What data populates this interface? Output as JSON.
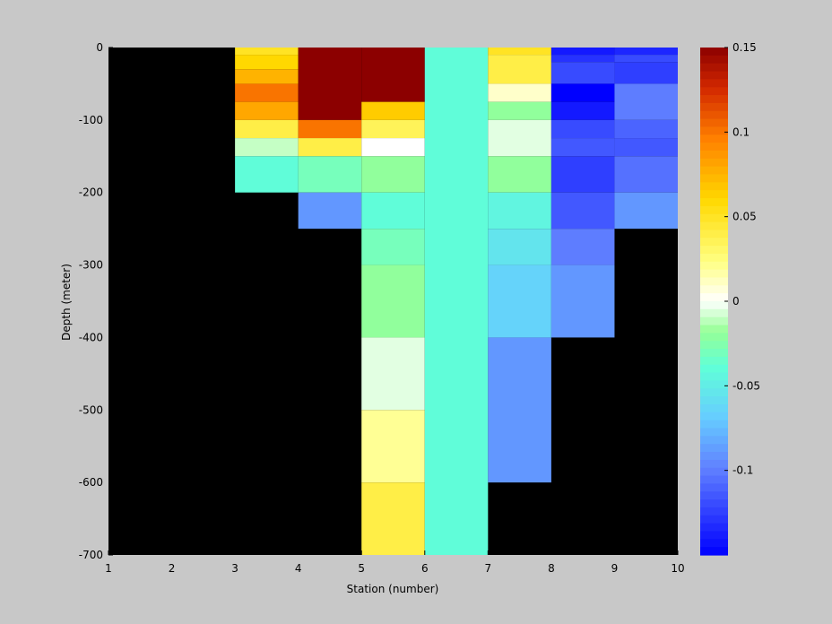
{
  "chart_data": {
    "type": "heatmap",
    "title": "",
    "xlabel": "Station (number)",
    "ylabel": "Depth (meter)",
    "xlim": [
      1,
      10
    ],
    "ylim": [
      -700,
      0
    ],
    "xticks": [
      1,
      2,
      3,
      4,
      5,
      6,
      7,
      8,
      9,
      10
    ],
    "yticks": [
      0,
      -100,
      -200,
      -300,
      -400,
      -500,
      -600,
      -700
    ],
    "background_color": "#000000",
    "colorbar": {
      "colormap": "jet-like (blue-cyan-green-white-yellow-red)",
      "clim": [
        -0.15,
        0.15
      ],
      "ticks": [
        0.15,
        0.1,
        0.05,
        0,
        -0.05,
        -0.1
      ]
    },
    "station_columns": [
      {
        "x0": 3,
        "x1": 4,
        "cells": [
          {
            "top": 0,
            "bottom": -10,
            "value": 0.05
          },
          {
            "top": -10,
            "bottom": -30,
            "value": 0.06
          },
          {
            "top": -30,
            "bottom": -50,
            "value": 0.075
          },
          {
            "top": -50,
            "bottom": -75,
            "value": 0.1
          },
          {
            "top": -75,
            "bottom": -100,
            "value": 0.08
          },
          {
            "top": -100,
            "bottom": -125,
            "value": 0.04
          },
          {
            "top": -125,
            "bottom": -150,
            "value": -0.01
          },
          {
            "top": -150,
            "bottom": -200,
            "value": -0.04
          }
        ]
      },
      {
        "x0": 4,
        "x1": 5,
        "cells": [
          {
            "top": 0,
            "bottom": -100,
            "value": 0.15
          },
          {
            "top": -100,
            "bottom": -125,
            "value": 0.1
          },
          {
            "top": -125,
            "bottom": -150,
            "value": 0.04
          },
          {
            "top": -150,
            "bottom": -200,
            "value": -0.03
          },
          {
            "top": -200,
            "bottom": -250,
            "value": -0.09
          }
        ]
      },
      {
        "x0": 5,
        "x1": 6,
        "cells": [
          {
            "top": 0,
            "bottom": -75,
            "value": 0.15
          },
          {
            "top": -75,
            "bottom": -100,
            "value": 0.065
          },
          {
            "top": -100,
            "bottom": -125,
            "value": 0.035
          },
          {
            "top": -125,
            "bottom": -150,
            "value": 0.0
          },
          {
            "top": -150,
            "bottom": -200,
            "value": -0.02
          },
          {
            "top": -200,
            "bottom": -250,
            "value": -0.04
          },
          {
            "top": -250,
            "bottom": -300,
            "value": -0.03
          },
          {
            "top": -300,
            "bottom": -400,
            "value": -0.02
          },
          {
            "top": -400,
            "bottom": -500,
            "value": -0.005
          },
          {
            "top": -500,
            "bottom": -600,
            "value": 0.02
          },
          {
            "top": -600,
            "bottom": -700,
            "value": 0.04
          }
        ]
      },
      {
        "x0": 6,
        "x1": 7,
        "cells": [
          {
            "top": 0,
            "bottom": -700,
            "value": -0.04
          }
        ]
      },
      {
        "x0": 7,
        "x1": 8,
        "cells": [
          {
            "top": 0,
            "bottom": -10,
            "value": 0.05
          },
          {
            "top": -10,
            "bottom": -50,
            "value": 0.04
          },
          {
            "top": -50,
            "bottom": -75,
            "value": 0.01
          },
          {
            "top": -75,
            "bottom": -100,
            "value": -0.02
          },
          {
            "top": -100,
            "bottom": -150,
            "value": -0.005
          },
          {
            "top": -150,
            "bottom": -200,
            "value": -0.02
          },
          {
            "top": -200,
            "bottom": -250,
            "value": -0.045
          },
          {
            "top": -250,
            "bottom": -300,
            "value": -0.055
          },
          {
            "top": -300,
            "bottom": -400,
            "value": -0.065
          },
          {
            "top": -400,
            "bottom": -600,
            "value": -0.09
          }
        ]
      },
      {
        "x0": 8,
        "x1": 9,
        "cells": [
          {
            "top": 0,
            "bottom": -10,
            "value": -0.14
          },
          {
            "top": -10,
            "bottom": -20,
            "value": -0.13
          },
          {
            "top": -20,
            "bottom": -50,
            "value": -0.12
          },
          {
            "top": -50,
            "bottom": -75,
            "value": -0.15
          },
          {
            "top": -75,
            "bottom": -100,
            "value": -0.14
          },
          {
            "top": -100,
            "bottom": -125,
            "value": -0.12
          },
          {
            "top": -125,
            "bottom": -150,
            "value": -0.115
          },
          {
            "top": -150,
            "bottom": -200,
            "value": -0.125
          },
          {
            "top": -200,
            "bottom": -250,
            "value": -0.115
          },
          {
            "top": -250,
            "bottom": -300,
            "value": -0.1
          },
          {
            "top": -300,
            "bottom": -400,
            "value": -0.09
          }
        ]
      },
      {
        "x0": 9,
        "x1": 10,
        "cells": [
          {
            "top": 0,
            "bottom": -10,
            "value": -0.135
          },
          {
            "top": -10,
            "bottom": -20,
            "value": -0.12
          },
          {
            "top": -20,
            "bottom": -50,
            "value": -0.125
          },
          {
            "top": -50,
            "bottom": -100,
            "value": -0.1
          },
          {
            "top": -100,
            "bottom": -125,
            "value": -0.11
          },
          {
            "top": -125,
            "bottom": -150,
            "value": -0.115
          },
          {
            "top": -150,
            "bottom": -200,
            "value": -0.105
          },
          {
            "top": -200,
            "bottom": -250,
            "value": -0.09
          }
        ]
      }
    ]
  }
}
